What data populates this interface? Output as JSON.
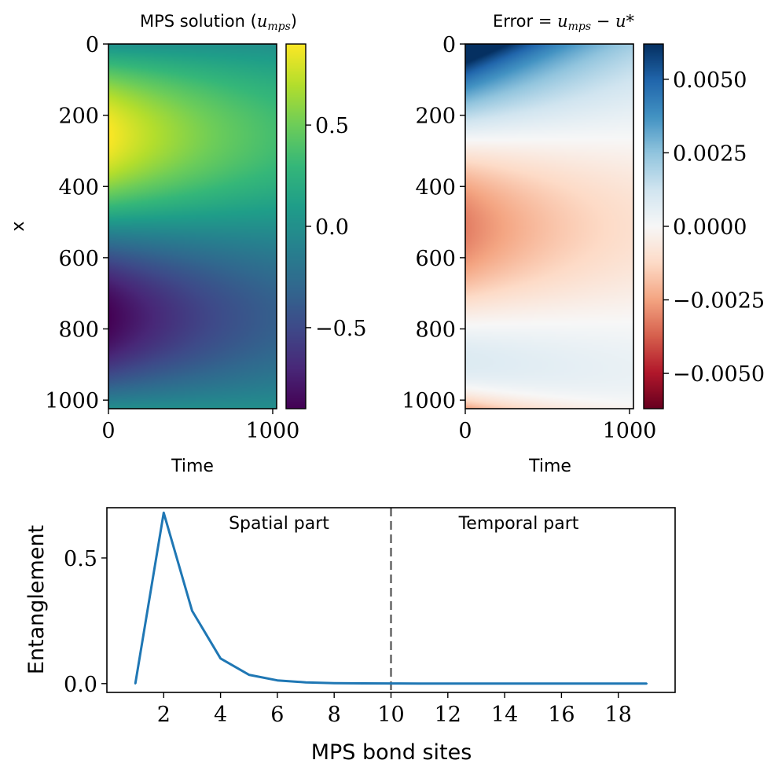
{
  "chart_data": [
    {
      "type": "heatmap",
      "title": {
        "prefix": "MPS solution (",
        "math": "u",
        "sub": "mps",
        "suffix": ")"
      },
      "xlabel": "Time",
      "ylabel": "x",
      "xlim": [
        0,
        1024
      ],
      "ylim": [
        1024,
        0
      ],
      "xticks": [
        {
          "v": 0,
          "t": "0"
        },
        {
          "v": 1000,
          "t": "1000"
        }
      ],
      "yticks": [
        {
          "v": 0,
          "t": "0"
        },
        {
          "v": 200,
          "t": "200"
        },
        {
          "v": 400,
          "t": "400"
        },
        {
          "v": 600,
          "t": "600"
        },
        {
          "v": 800,
          "t": "800"
        },
        {
          "v": 1000,
          "t": "1000"
        }
      ],
      "colormap": "viridis",
      "colorbar": {
        "range": [
          -0.9,
          0.9
        ],
        "ticks": [
          {
            "v": 0.5,
            "t": "0.5"
          },
          {
            "v": 0.0,
            "t": "0.0"
          },
          {
            "v": -0.5,
            "t": "−0.5"
          }
        ]
      },
      "field_description": "u(x,t) = 0.9 * sin(2*pi*x/1024) * exp(-t/1100)"
    },
    {
      "type": "heatmap",
      "title": {
        "prefix": "Error ",
        "math": "= u",
        "sub": "mps",
        "suffix": " − u*"
      },
      "xlabel": "Time",
      "ylabel": "",
      "xlim": [
        0,
        1024
      ],
      "ylim": [
        1024,
        0
      ],
      "xticks": [
        {
          "v": 0,
          "t": "0"
        },
        {
          "v": 1000,
          "t": "1000"
        }
      ],
      "yticks": [
        {
          "v": 0,
          "t": "0"
        },
        {
          "v": 200,
          "t": "200"
        },
        {
          "v": 400,
          "t": "400"
        },
        {
          "v": 600,
          "t": "600"
        },
        {
          "v": 800,
          "t": "800"
        },
        {
          "v": 1000,
          "t": "1000"
        }
      ],
      "colormap": "RdBu",
      "colorbar": {
        "range": [
          -0.0062,
          0.0062
        ],
        "ticks": [
          {
            "v": 0.005,
            "t": "0.0050"
          },
          {
            "v": 0.0025,
            "t": "0.0025"
          },
          {
            "v": 0.0,
            "t": "0.0000"
          },
          {
            "v": -0.0025,
            "t": "−0.0025"
          },
          {
            "v": -0.005,
            "t": "−0.0050"
          }
        ]
      }
    },
    {
      "type": "line",
      "xlabel": "MPS bond sites",
      "ylabel": "Entanglement",
      "xlim": [
        0.0,
        20.0
      ],
      "ylim": [
        -0.035,
        0.7
      ],
      "xticks": [
        {
          "v": 2,
          "t": "2"
        },
        {
          "v": 4,
          "t": "4"
        },
        {
          "v": 6,
          "t": "6"
        },
        {
          "v": 8,
          "t": "8"
        },
        {
          "v": 10,
          "t": "10"
        },
        {
          "v": 12,
          "t": "12"
        },
        {
          "v": 14,
          "t": "14"
        },
        {
          "v": 16,
          "t": "16"
        },
        {
          "v": 18,
          "t": "18"
        }
      ],
      "yticks": [
        {
          "v": 0.0,
          "t": "0.0"
        },
        {
          "v": 0.5,
          "t": "0.5"
        }
      ],
      "x": [
        1,
        2,
        3,
        4,
        5,
        6,
        7,
        8,
        9,
        10,
        11,
        12,
        13,
        14,
        15,
        16,
        17,
        18,
        19
      ],
      "values": [
        0.0,
        0.68,
        0.29,
        0.1,
        0.035,
        0.013,
        0.005,
        0.002,
        0.001,
        0.0005,
        0.0002,
        0.0001,
        0.0001,
        0.0,
        0.0,
        0.0,
        0.0,
        0.0,
        0.0
      ],
      "line_color": "#1f77b4",
      "vline": {
        "x": 10,
        "color": "#7f7f7f",
        "style": "dashed"
      },
      "annotations": [
        {
          "text": "Spatial part",
          "side": "left"
        },
        {
          "text": "Temporal part",
          "side": "right"
        }
      ]
    }
  ]
}
